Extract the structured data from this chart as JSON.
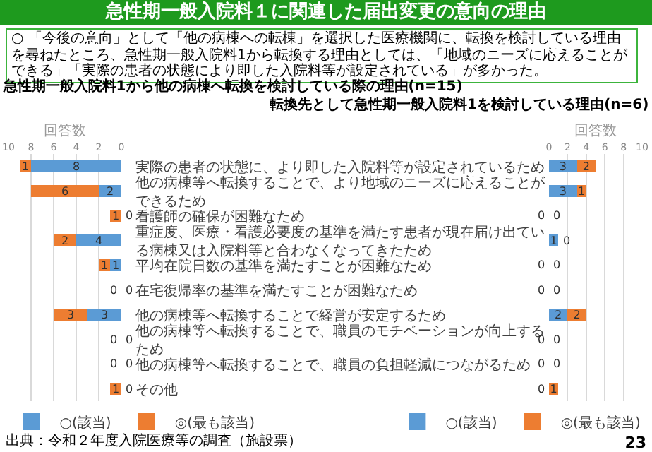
{
  "chart_data": [
    {
      "type": "other",
      "title": "急性期一般入院料１に関連した届出変更の意向の理由",
      "subtitle": "○ 「今後の意向」として「他の病棟への転棟」を選択した医療機関に、転換を検討している理由を尋ねたところ、急性期一般入院料1から転換する理由としては、「地域のニーズに応えることができる」「実際の患者の状態により即した入院料等が設定されている」が多かった。",
      "annotations": [
        "出典：令和２年度入院医療等の調査（施設票）",
        "23"
      ]
    },
    {
      "type": "bar",
      "orientation": "horizontal",
      "stacked": true,
      "title": "急性期一般入院料1から他の病棟へ転換を検討している際の理由(n=15)",
      "xlabel": "回答数",
      "categories": [
        "実際の患者の状態に、より即した入院料等が設定されているため",
        "他の病棟等へ転換することで、より地域のニーズに応えることができるため",
        "看護師の確保が困難なため",
        "重症度、医療・看護必要度の基準を満たす患者が現在届け出ている病棟又は入院料等と合わなくなってきたため",
        "平均在院日数の基準を満たすことが困難なため",
        "在宅復帰率の基準を満たすことが困難なため",
        "他の病棟等へ転換することで経営が安定するため",
        "他の病棟等へ転換することで、職員のモチベーションが向上するため",
        "他の病棟等へ転換することで、職員の負担軽減につながるため",
        "その他"
      ],
      "series": [
        {
          "name": "○(該当)",
          "color": "#5b9bd5",
          "values": [
            8,
            2,
            0,
            4,
            1,
            0,
            3,
            0,
            0,
            0
          ]
        },
        {
          "name": "◎(最も該当)",
          "color": "#ed7d31",
          "values": [
            1,
            6,
            1,
            2,
            1,
            0,
            3,
            0,
            0,
            1
          ]
        }
      ],
      "xlim": [
        10,
        0
      ],
      "xticks": [
        0,
        2,
        4,
        6,
        8,
        10
      ],
      "grid": "x",
      "legend": "bottom right",
      "data_labels": true
    },
    {
      "type": "bar",
      "orientation": "horizontal",
      "stacked": true,
      "title": "転換先として急性期一般入院料1を検討している理由(n=6)",
      "xlabel": "回答数",
      "categories": [
        "実際の患者の状態に、より即した入院料等が設定されているため",
        "他の病棟等へ転換することで、より地域のニーズに応えることができるため",
        "看護師の確保が困難なため",
        "重症度、医療・看護必要度の基準を満たす患者が現在届け出ている病棟又は入院料等と合わなくなってきたため",
        "平均在院日数の基準を満たすことが困難なため",
        "在宅復帰率の基準を満たすことが困難なため",
        "他の病棟等へ転換することで経営が安定するため",
        "他の病棟等へ転換することで、職員のモチベーションが向上するため",
        "他の病棟等へ転換することで、職員の負担軽減につながるため",
        "その他"
      ],
      "series": [
        {
          "name": "○(該当)",
          "color": "#5b9bd5",
          "values": [
            3,
            3,
            0,
            1,
            0,
            0,
            2,
            0,
            0,
            0
          ]
        },
        {
          "name": "◎(最も該当)",
          "color": "#ed7d31",
          "values": [
            2,
            1,
            0,
            0,
            0,
            0,
            2,
            0,
            0,
            1
          ]
        }
      ],
      "xlim": [
        0,
        10
      ],
      "xticks": [
        0,
        2,
        4,
        6,
        8,
        10
      ],
      "grid": "x",
      "legend": "bottom left",
      "data_labels": true,
      "tick_labels": "x"
    }
  ]
}
